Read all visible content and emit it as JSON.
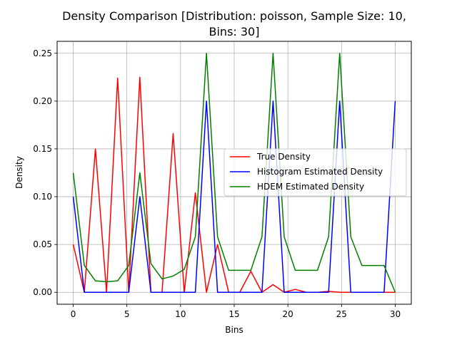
{
  "chart_data": {
    "type": "line",
    "title_lines": [
      "Density Comparison [Distribution: poisson, Sample Size: 10,",
      "Bins: 30]"
    ],
    "xlabel": "Bins",
    "ylabel": "Density",
    "xlim": [
      -1.5,
      31.5
    ],
    "ylim": [
      -0.0125,
      0.2625
    ],
    "xticks": [
      0,
      5,
      10,
      15,
      20,
      25,
      30
    ],
    "xtick_labels": [
      "0",
      "5",
      "10",
      "15",
      "20",
      "25",
      "30"
    ],
    "yticks": [
      0.0,
      0.05,
      0.1,
      0.15,
      0.2,
      0.25
    ],
    "ytick_labels": [
      "0.00",
      "0.05",
      "0.10",
      "0.15",
      "0.20",
      "0.25"
    ],
    "grid": true,
    "legend_position": "center-right",
    "x": [
      0.0,
      1.034,
      2.069,
      3.103,
      4.138,
      5.172,
      6.207,
      7.241,
      8.276,
      9.31,
      10.345,
      11.379,
      12.414,
      13.448,
      14.483,
      15.517,
      16.552,
      17.586,
      18.621,
      19.655,
      20.69,
      21.724,
      22.759,
      23.793,
      24.828,
      25.862,
      26.897,
      27.931,
      28.966,
      30.0
    ],
    "series": [
      {
        "name": "True Density",
        "color": "#ff0000",
        "values": [
          0.05,
          0.0,
          0.15,
          0.0,
          0.224,
          0.0,
          0.225,
          0.0,
          0.0,
          0.166,
          0.0,
          0.104,
          0.0,
          0.05,
          0.0,
          0.0,
          0.022,
          0.0,
          0.008,
          0.0,
          0.003,
          0.0,
          0.0,
          0.001,
          0.0,
          0.0,
          0.0,
          0.0,
          0.0,
          0.0
        ]
      },
      {
        "name": "Histogram Estimated Density",
        "color": "#0000ff",
        "values": [
          0.1,
          0.0,
          0.0,
          0.0,
          0.0,
          0.0,
          0.1,
          0.0,
          0.0,
          0.0,
          0.0,
          0.0,
          0.2,
          0.0,
          0.0,
          0.0,
          0.0,
          0.0,
          0.2,
          0.0,
          0.0,
          0.0,
          0.0,
          0.0,
          0.2,
          0.0,
          0.0,
          0.0,
          0.0,
          0.2
        ]
      },
      {
        "name": "HDEM Estimated Density",
        "color": "#008000",
        "values": [
          0.125,
          0.028,
          0.012,
          0.011,
          0.012,
          0.028,
          0.125,
          0.03,
          0.014,
          0.017,
          0.024,
          0.058,
          0.25,
          0.058,
          0.023,
          0.023,
          0.023,
          0.058,
          0.25,
          0.058,
          0.023,
          0.023,
          0.023,
          0.058,
          0.25,
          0.058,
          0.028,
          0.028,
          0.028,
          0.0
        ]
      }
    ]
  }
}
